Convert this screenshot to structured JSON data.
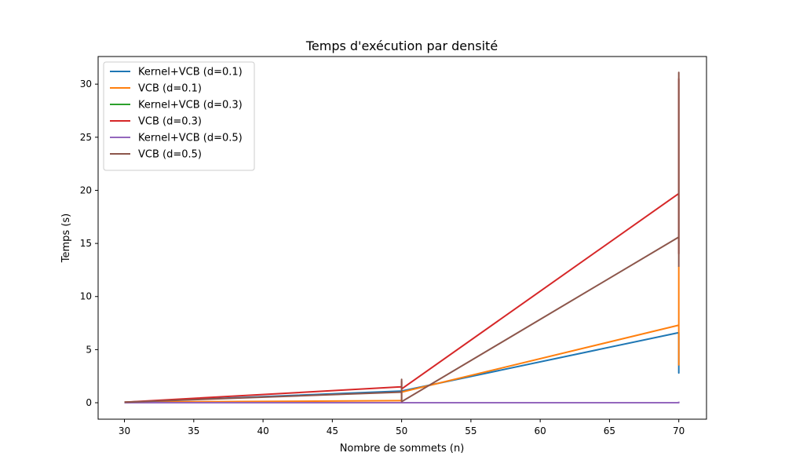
{
  "chart_data": {
    "type": "line",
    "title": "Temps d'exécution par densité",
    "xlabel": "Nombre de sommets (n)",
    "ylabel": "Temps (s)",
    "xlim": [
      28.1,
      72.0
    ],
    "ylim": [
      -1.55,
      32.6
    ],
    "xticks": [
      30,
      35,
      40,
      45,
      50,
      55,
      60,
      65,
      70
    ],
    "yticks": [
      0,
      5,
      10,
      15,
      20,
      25,
      30
    ],
    "grid": false,
    "legend_position": "top-left",
    "series": [
      {
        "name": "Kernel+VCB (d=0.1)",
        "color": "#1f77b4",
        "points": [
          [
            30,
            0.05
          ],
          [
            50,
            1.1
          ],
          [
            70,
            6.6
          ],
          [
            70,
            2.8
          ],
          [
            70,
            3.4
          ]
        ]
      },
      {
        "name": "VCB (d=0.1)",
        "color": "#ff7f0e",
        "points": [
          [
            30,
            0.05
          ],
          [
            50,
            0.2
          ],
          [
            50,
            1.0
          ],
          [
            70,
            7.3
          ],
          [
            70,
            12.8
          ],
          [
            70,
            3.5
          ]
        ]
      },
      {
        "name": "Kernel+VCB (d=0.3)",
        "color": "#2ca02c",
        "points": [
          [
            30,
            0.0
          ],
          [
            50,
            0.0
          ],
          [
            70,
            0.0
          ]
        ]
      },
      {
        "name": "VCB (d=0.3)",
        "color": "#d62728",
        "points": [
          [
            30,
            0.05
          ],
          [
            50,
            1.5
          ],
          [
            50,
            2.0
          ],
          [
            50,
            1.3
          ],
          [
            70,
            19.7
          ],
          [
            70,
            30.5
          ],
          [
            70,
            14.0
          ]
        ]
      },
      {
        "name": "Kernel+VCB (d=0.5)",
        "color": "#9467bd",
        "points": [
          [
            30,
            0.0
          ],
          [
            50,
            0.0
          ],
          [
            70,
            0.0
          ],
          [
            70,
            0.1
          ]
        ]
      },
      {
        "name": "VCB (d=0.5)",
        "color": "#8c564b",
        "points": [
          [
            30,
            0.05
          ],
          [
            50,
            1.0
          ],
          [
            50,
            2.2
          ],
          [
            50,
            0.1
          ],
          [
            70,
            15.6
          ],
          [
            70,
            31.1
          ],
          [
            70,
            12.8
          ]
        ]
      }
    ]
  }
}
